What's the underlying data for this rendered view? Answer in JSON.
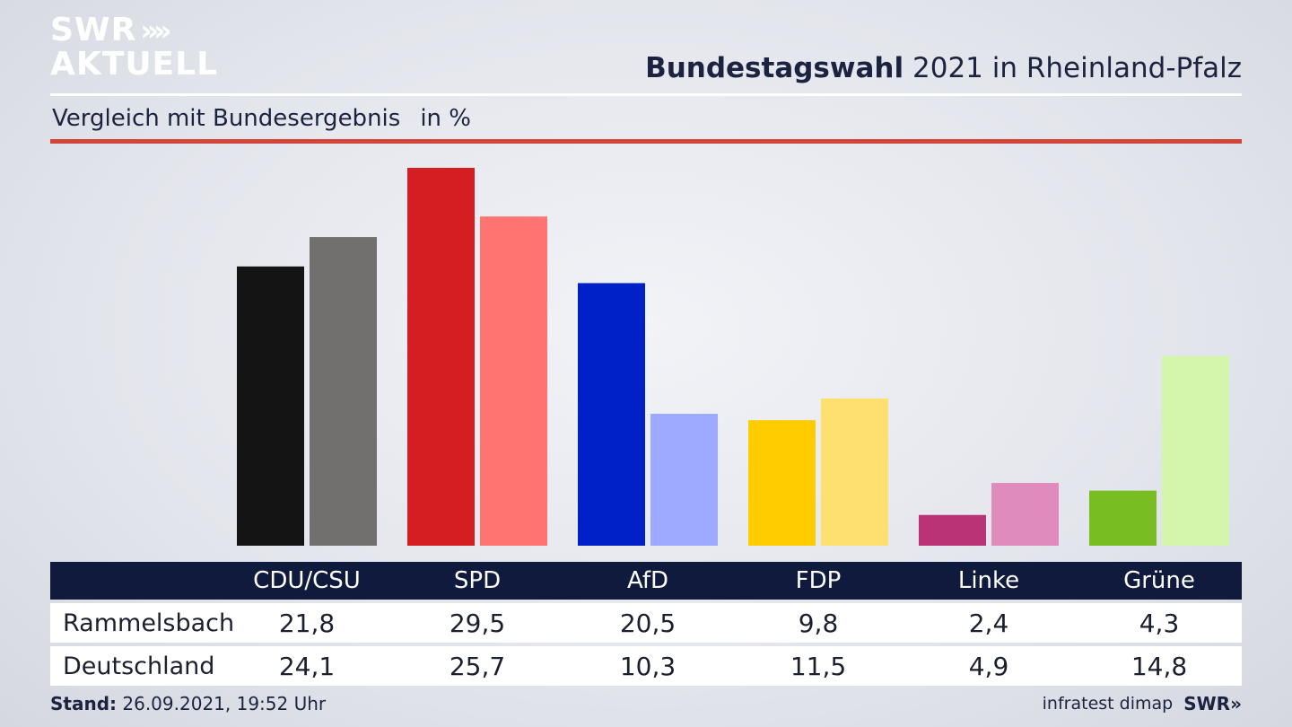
{
  "logo": {
    "line1": "SWR",
    "chevrons": "»",
    "line2": "AKTUELL"
  },
  "header": {
    "title_bold": "Bundestagswahl",
    "title_rest": "2021 in Rheinland-Pfalz"
  },
  "subheader": {
    "text": "Vergleich mit Bundesergebnis",
    "unit": "in %"
  },
  "chart_data": {
    "type": "bar",
    "categories": [
      "CDU/CSU",
      "SPD",
      "AfD",
      "FDP",
      "Linke",
      "Grüne"
    ],
    "series": [
      {
        "name": "Rammelsbach",
        "values": [
          21.8,
          29.5,
          20.5,
          9.8,
          2.4,
          4.3
        ],
        "colors": [
          "#141414",
          "#d41e22",
          "#0020c8",
          "#ffcc00",
          "#bb3377",
          "#78bd22"
        ]
      },
      {
        "name": "Deutschland",
        "values": [
          24.1,
          25.7,
          10.3,
          11.5,
          4.9,
          14.8
        ],
        "colors": [
          "#72706e",
          "#ff7470",
          "#9eaaff",
          "#fee070",
          "#e08bbd",
          "#d4f6aa"
        ]
      }
    ],
    "ylim": [
      0,
      29.5
    ]
  },
  "table": {
    "headers": [
      "CDU/CSU",
      "SPD",
      "AfD",
      "FDP",
      "Linke",
      "Grüne"
    ],
    "rows": [
      {
        "label": "Rammelsbach",
        "values": [
          "21,8",
          "29,5",
          "20,5",
          "9,8",
          "2,4",
          "4,3"
        ]
      },
      {
        "label": "Deutschland",
        "values": [
          "24,1",
          "25,7",
          "10,3",
          "11,5",
          "4,9",
          "14,8"
        ]
      }
    ]
  },
  "footer": {
    "stand_label": "Stand:",
    "stand_value": "26.09.2021, 19:52 Uhr",
    "source": "infratest dimap",
    "brand": "SWR»"
  }
}
